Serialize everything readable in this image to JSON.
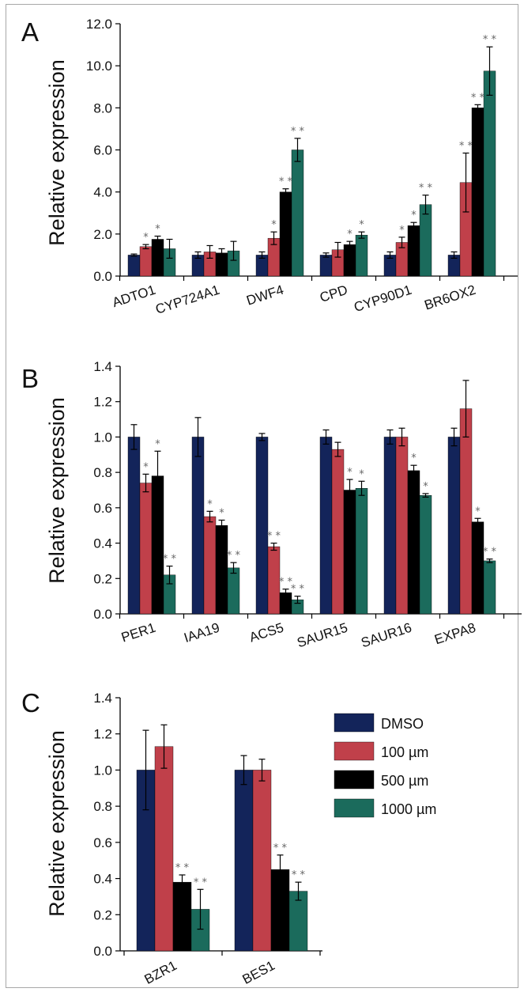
{
  "colors": {
    "series": [
      "#13245a",
      "#c0404a",
      "#000000",
      "#1b6b5c"
    ],
    "axis": "#000000",
    "error": "#000000",
    "sig": "#666666"
  },
  "legend": {
    "entries": [
      "DMSO",
      "100 µm",
      "500 µm",
      "1000 µm"
    ]
  },
  "chart_data": [
    {
      "panel": "A",
      "type": "bar",
      "ylabel": "Relative expression",
      "ylim": [
        0,
        12
      ],
      "yticks": [
        "0.0",
        "2.0",
        "4.0",
        "6.0",
        "8.0",
        "10.0",
        "12.0"
      ],
      "ytick_values": [
        0,
        2,
        4,
        6,
        8,
        10,
        12
      ],
      "categories": [
        "ADTO1",
        "CYP724A1",
        "DWF4",
        "CPD",
        "CYP90D1",
        "BR6OX2"
      ],
      "series": [
        {
          "name": "DMSO",
          "values": [
            1.0,
            1.0,
            1.0,
            1.0,
            1.0,
            1.0
          ],
          "errors": [
            0.05,
            0.15,
            0.15,
            0.1,
            0.15,
            0.15
          ],
          "sig": [
            "",
            "",
            "",
            "",
            "",
            ""
          ]
        },
        {
          "name": "100 µm",
          "values": [
            1.4,
            1.15,
            1.8,
            1.25,
            1.6,
            4.45
          ],
          "errors": [
            0.1,
            0.3,
            0.3,
            0.35,
            0.25,
            1.4
          ],
          "sig": [
            "*",
            "",
            "*",
            "",
            "*",
            "**"
          ]
        },
        {
          "name": "500 µm",
          "values": [
            1.75,
            1.1,
            4.0,
            1.5,
            2.4,
            8.0
          ],
          "errors": [
            0.15,
            0.2,
            0.15,
            0.15,
            0.15,
            0.15
          ],
          "sig": [
            "*",
            "",
            "**",
            "*",
            "*",
            "**"
          ]
        },
        {
          "name": "1000 µm",
          "values": [
            1.3,
            1.2,
            6.0,
            1.95,
            3.4,
            9.75
          ],
          "errors": [
            0.45,
            0.45,
            0.55,
            0.15,
            0.45,
            1.15
          ],
          "sig": [
            "",
            "",
            "**",
            "*",
            "**",
            "**"
          ]
        }
      ]
    },
    {
      "panel": "B",
      "type": "bar",
      "ylabel": "Relative expression",
      "ylim": [
        0,
        1.4
      ],
      "yticks": [
        "0.0",
        "0.2",
        "0.4",
        "0.6",
        "0.8",
        "1.0",
        "1.2",
        "1.4"
      ],
      "ytick_values": [
        0,
        0.2,
        0.4,
        0.6,
        0.8,
        1.0,
        1.2,
        1.4
      ],
      "categories": [
        "PER1",
        "IAA19",
        "ACS5",
        "SAUR15",
        "SAUR16",
        "EXPA8"
      ],
      "series": [
        {
          "name": "DMSO",
          "values": [
            1.0,
            1.0,
            1.0,
            1.0,
            1.0,
            1.0
          ],
          "errors": [
            0.07,
            0.11,
            0.02,
            0.04,
            0.04,
            0.05
          ],
          "sig": [
            "",
            "",
            "",
            "",
            "",
            ""
          ]
        },
        {
          "name": "100 µm",
          "values": [
            0.74,
            0.55,
            0.38,
            0.93,
            1.0,
            1.16
          ],
          "errors": [
            0.05,
            0.03,
            0.02,
            0.04,
            0.05,
            0.16
          ],
          "sig": [
            "*",
            "*",
            "**",
            "",
            "",
            ""
          ]
        },
        {
          "name": "500 µm",
          "values": [
            0.78,
            0.5,
            0.12,
            0.7,
            0.81,
            0.52
          ],
          "errors": [
            0.14,
            0.03,
            0.02,
            0.06,
            0.03,
            0.02
          ],
          "sig": [
            "*",
            "*",
            "**",
            "*",
            "*",
            "*"
          ]
        },
        {
          "name": "1000 µm",
          "values": [
            0.22,
            0.26,
            0.08,
            0.71,
            0.67,
            0.3
          ],
          "errors": [
            0.05,
            0.03,
            0.02,
            0.04,
            0.01,
            0.01
          ],
          "sig": [
            "**",
            "**",
            "**",
            "*",
            "*",
            "**"
          ]
        }
      ]
    },
    {
      "panel": "C",
      "type": "bar",
      "ylabel": "Relative expression",
      "ylim": [
        0,
        1.4
      ],
      "yticks": [
        "0.0",
        "0.2",
        "0.4",
        "0.6",
        "0.8",
        "1.0",
        "1.2",
        "1.4"
      ],
      "ytick_values": [
        0,
        0.2,
        0.4,
        0.6,
        0.8,
        1.0,
        1.2,
        1.4
      ],
      "categories": [
        "BZR1",
        "BES1"
      ],
      "series": [
        {
          "name": "DMSO",
          "values": [
            1.0,
            1.0
          ],
          "errors": [
            0.22,
            0.08
          ],
          "sig": [
            "",
            ""
          ]
        },
        {
          "name": "100 µm",
          "values": [
            1.13,
            1.0
          ],
          "errors": [
            0.12,
            0.06
          ],
          "sig": [
            "",
            ""
          ]
        },
        {
          "name": "500 µm",
          "values": [
            0.38,
            0.45
          ],
          "errors": [
            0.04,
            0.08
          ],
          "sig": [
            "**",
            "**"
          ]
        },
        {
          "name": "1000 µm",
          "values": [
            0.23,
            0.33
          ],
          "errors": [
            0.11,
            0.05
          ],
          "sig": [
            "**",
            "**"
          ]
        }
      ]
    }
  ]
}
